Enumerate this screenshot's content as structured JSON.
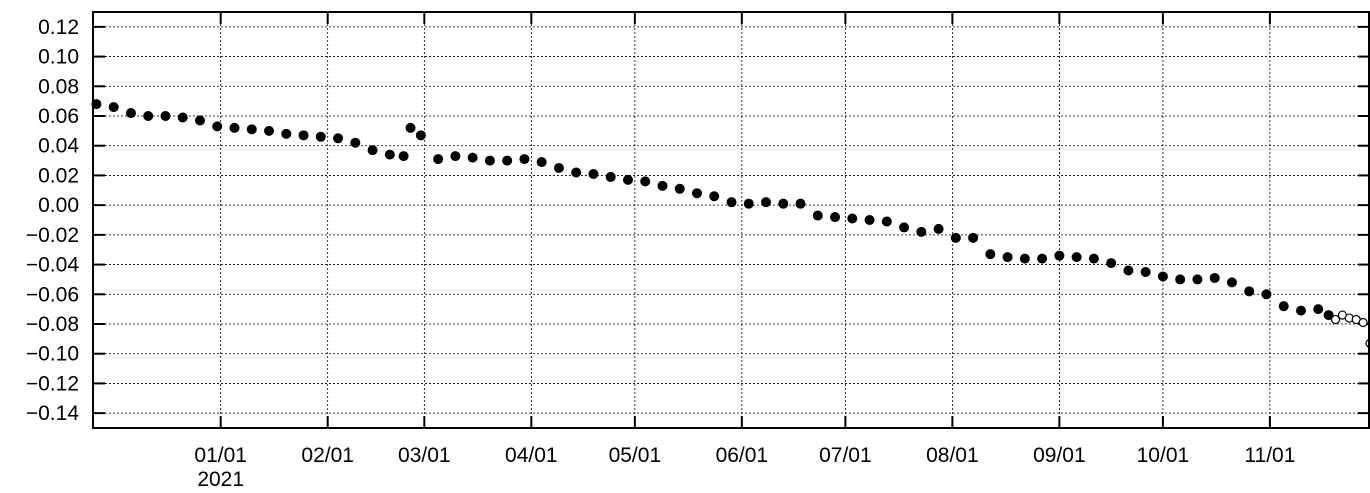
{
  "chart_data": {
    "type": "scatter",
    "title": "",
    "xlabel": "",
    "ylabel": "",
    "x_domain": [
      "2020-11-25",
      "2021-11-30"
    ],
    "ylim": [
      -0.15,
      0.13
    ],
    "y_ticks": [
      0.12,
      0.1,
      0.08,
      0.06,
      0.04,
      0.02,
      0.0,
      -0.02,
      -0.04,
      -0.06,
      -0.08,
      -0.1,
      -0.12,
      -0.14
    ],
    "y_tick_labels": [
      "0.12",
      "0.10",
      "0.08",
      "0.06",
      "0.04",
      "0.02",
      "0.00",
      "−0.02",
      "−0.04",
      "−0.06",
      "−0.08",
      "−0.10",
      "−0.12",
      "−0.14"
    ],
    "x_ticks": [
      "2021-01-01",
      "2021-02-01",
      "2021-03-01",
      "2021-04-01",
      "2021-05-01",
      "2021-06-01",
      "2021-07-01",
      "2021-08-01",
      "2021-09-01",
      "2021-10-01",
      "2021-11-01"
    ],
    "x_tick_labels": [
      "01/01",
      "02/01",
      "03/01",
      "04/01",
      "05/01",
      "06/01",
      "07/01",
      "08/01",
      "09/01",
      "10/01",
      "11/01"
    ],
    "x_sublabel": "2021",
    "grid": true,
    "marker_color": "#000000",
    "series": [
      {
        "marker": "filled-circle",
        "x": [
          "2020-11-26",
          "2020-12-01",
          "2020-12-06",
          "2020-12-11",
          "2020-12-16",
          "2020-12-21",
          "2020-12-26",
          "2020-12-31",
          "2021-01-05",
          "2021-01-10",
          "2021-01-15",
          "2021-01-20",
          "2021-01-25",
          "2021-01-30",
          "2021-02-04",
          "2021-02-09",
          "2021-02-14",
          "2021-02-19",
          "2021-02-23",
          "2021-02-25",
          "2021-02-28",
          "2021-03-05",
          "2021-03-10",
          "2021-03-15",
          "2021-03-20",
          "2021-03-25",
          "2021-03-30",
          "2021-04-04",
          "2021-04-09",
          "2021-04-14",
          "2021-04-19",
          "2021-04-24",
          "2021-04-29",
          "2021-05-04",
          "2021-05-09",
          "2021-05-14",
          "2021-05-19",
          "2021-05-24",
          "2021-05-29",
          "2021-06-03",
          "2021-06-08",
          "2021-06-13",
          "2021-06-18",
          "2021-06-23",
          "2021-06-28",
          "2021-07-03",
          "2021-07-08",
          "2021-07-13",
          "2021-07-18",
          "2021-07-23",
          "2021-07-28",
          "2021-08-02",
          "2021-08-07",
          "2021-08-12",
          "2021-08-17",
          "2021-08-22",
          "2021-08-27",
          "2021-09-01",
          "2021-09-06",
          "2021-09-11",
          "2021-09-16",
          "2021-09-21",
          "2021-09-26",
          "2021-10-01",
          "2021-10-06",
          "2021-10-11",
          "2021-10-16",
          "2021-10-21",
          "2021-10-26",
          "2021-10-31",
          "2021-11-05",
          "2021-11-10",
          "2021-11-15",
          "2021-11-18"
        ],
        "y": [
          0.068,
          0.066,
          0.062,
          0.06,
          0.06,
          0.059,
          0.057,
          0.053,
          0.052,
          0.051,
          0.05,
          0.048,
          0.047,
          0.046,
          0.045,
          0.042,
          0.037,
          0.034,
          0.033,
          0.052,
          0.047,
          0.031,
          0.033,
          0.032,
          0.03,
          0.03,
          0.031,
          0.029,
          0.025,
          0.022,
          0.021,
          0.019,
          0.017,
          0.016,
          0.013,
          0.011,
          0.008,
          0.006,
          0.002,
          0.001,
          0.002,
          0.001,
          0.001,
          -0.007,
          -0.008,
          -0.009,
          -0.01,
          -0.011,
          -0.015,
          -0.018,
          -0.016,
          -0.022,
          -0.022,
          -0.033,
          -0.035,
          -0.036,
          -0.036,
          -0.034,
          -0.035,
          -0.036,
          -0.039,
          -0.044,
          -0.045,
          -0.048,
          -0.05,
          -0.05,
          -0.049,
          -0.052,
          -0.058,
          -0.06,
          -0.068,
          -0.071,
          -0.07,
          -0.074
        ]
      },
      {
        "marker": "open-circle",
        "x": [
          "2021-11-20",
          "2021-11-22",
          "2021-11-24",
          "2021-11-26",
          "2021-11-28",
          "2021-11-30"
        ],
        "y": [
          -0.077,
          -0.074,
          -0.076,
          -0.077,
          -0.079,
          -0.093
        ]
      }
    ]
  }
}
